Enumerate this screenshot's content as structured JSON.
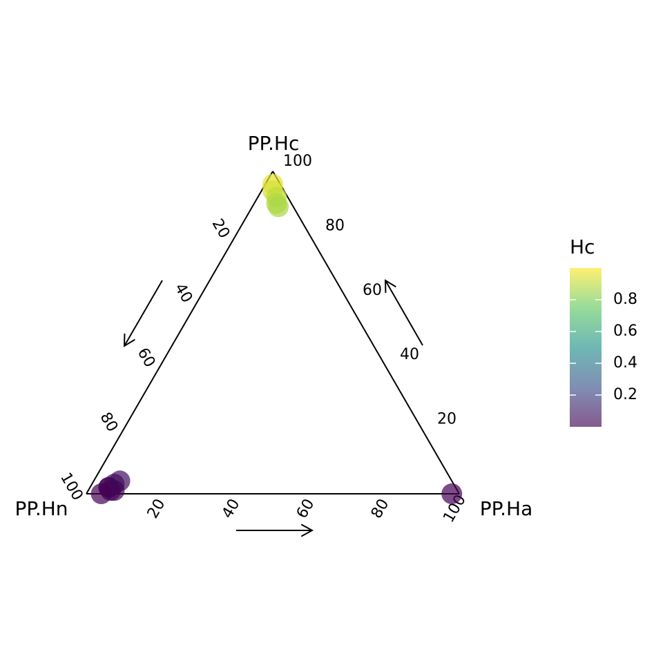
{
  "chart_data": {
    "type": "scatter",
    "subtype": "ternary",
    "title": "",
    "axes": {
      "top": {
        "label": "PP.Hc"
      },
      "left": {
        "label": "PP.Hn"
      },
      "right": {
        "label": "PP.Ha"
      }
    },
    "ticks": [
      20,
      40,
      60,
      80,
      100
    ],
    "scale": "percent 0-100",
    "grid": false,
    "points": [
      {
        "PP.Ha": 0.02,
        "PP.Hc": 0.96,
        "PP.Hn": 0.02,
        "Hc": 0.96
      },
      {
        "PP.Ha": 0.03,
        "PP.Hc": 0.94,
        "PP.Hn": 0.03,
        "Hc": 0.94
      },
      {
        "PP.Ha": 0.05,
        "PP.Hc": 0.92,
        "PP.Hn": 0.03,
        "Hc": 0.9
      },
      {
        "PP.Ha": 0.06,
        "PP.Hc": 0.9,
        "PP.Hn": 0.04,
        "Hc": 0.88
      },
      {
        "PP.Ha": 0.07,
        "PP.Hc": 0.89,
        "PP.Hn": 0.04,
        "Hc": 0.87
      },
      {
        "PP.Ha": 0.98,
        "PP.Hc": 0.0,
        "PP.Hn": 0.02,
        "Hc": 0.0
      },
      {
        "PP.Ha": 0.06,
        "PP.Hc": 0.03,
        "PP.Hn": 0.91,
        "Hc": 0.03
      },
      {
        "PP.Ha": 0.07,
        "PP.Hc": 0.04,
        "PP.Hn": 0.89,
        "Hc": 0.05
      },
      {
        "PP.Ha": 0.05,
        "PP.Hc": 0.02,
        "PP.Hn": 0.93,
        "Hc": 0.02
      },
      {
        "PP.Ha": 0.06,
        "PP.Hc": 0.01,
        "PP.Hn": 0.93,
        "Hc": 0.01
      },
      {
        "PP.Ha": 0.07,
        "PP.Hc": 0.01,
        "PP.Hn": 0.92,
        "Hc": 0.01
      },
      {
        "PP.Ha": 0.05,
        "PP.Hc": 0.02,
        "PP.Hn": 0.93,
        "Hc": 0.02
      },
      {
        "PP.Ha": 0.04,
        "PP.Hc": 0.0,
        "PP.Hn": 0.96,
        "Hc": 0.0
      }
    ],
    "legend": {
      "title": "Hc",
      "position": "right",
      "type": "colorbar",
      "range": [
        0.0,
        1.0
      ],
      "ticks": [
        "0.2",
        "0.4",
        "0.6",
        "0.8"
      ],
      "palette": "viridis"
    },
    "colors": [
      "#440154",
      "#3b528b",
      "#21918c",
      "#5ec962",
      "#fde725"
    ]
  }
}
